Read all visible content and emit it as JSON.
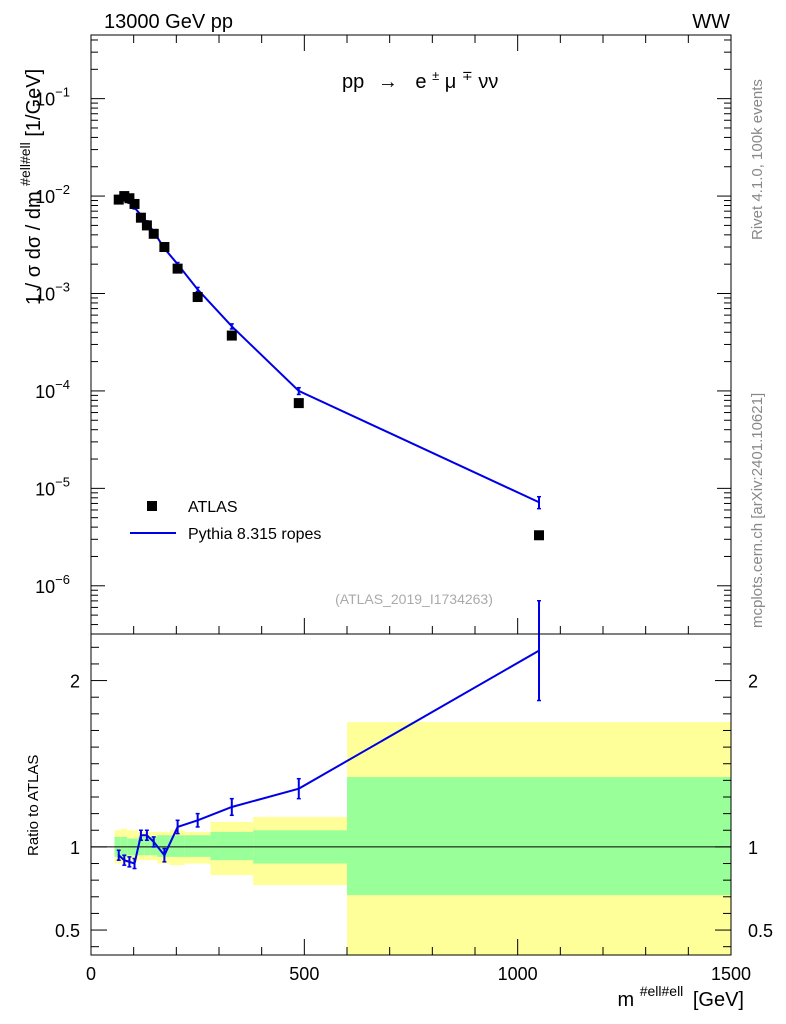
{
  "header": {
    "left_label": "13000 GeV pp",
    "right_label": "WW"
  },
  "side_labels": {
    "rivet": "Rivet 4.1.0,  100k events",
    "mcplots": "mcplots.cern.ch [arXiv:2401.10621]"
  },
  "chart_data": [
    {
      "type": "scatter",
      "title": "pp → e±μ∓νν",
      "title_parts": {
        "pp": "pp",
        "arrow": "→",
        "e": "e",
        "pm": "±",
        "mu": "μ",
        "mp": "∓",
        "nunu": "νν"
      },
      "ylabel": "1 / σ  dσ / dm",
      "ylabel_sup": "#ell#ell",
      "ylabel_unit": "[1/GeV]",
      "yscale": "log",
      "ylim": [
        3.2e-07,
        0.45
      ],
      "xlim": [
        0,
        1500
      ],
      "y_ticks": [
        {
          "v": 1e-06,
          "base": "10",
          "exp": "−6"
        },
        {
          "v": 1e-05,
          "base": "10",
          "exp": "−5"
        },
        {
          "v": 0.0001,
          "base": "10",
          "exp": "−4"
        },
        {
          "v": 0.001,
          "base": "10",
          "exp": "−3"
        },
        {
          "v": 0.01,
          "base": "10",
          "exp": "−2"
        },
        {
          "v": 0.1,
          "base": "10",
          "exp": "−1"
        }
      ],
      "watermark": "(ATLAS_2019_I1734263)",
      "legend": [
        "ATLAS",
        "Pythia 8.315 ropes"
      ],
      "series": [
        {
          "name": "ATLAS",
          "marker": "square",
          "color": "#000000",
          "x": [
            65,
            78,
            90,
            102,
            117,
            131,
            147,
            172,
            203,
            250,
            330,
            487,
            1050
          ],
          "y": [
            0.0092,
            0.01,
            0.0095,
            0.0083,
            0.006,
            0.005,
            0.0041,
            0.003,
            0.0018,
            0.00092,
            0.00037,
            7.5e-05,
            3.3e-06
          ]
        },
        {
          "name": "Pythia 8.315 ropes",
          "marker": "line",
          "color": "#0000e6",
          "x": [
            65,
            78,
            90,
            102,
            117,
            131,
            147,
            172,
            203,
            250,
            330,
            487,
            1050
          ],
          "y": [
            0.0087,
            0.0092,
            0.0087,
            0.0076,
            0.0064,
            0.0054,
            0.0043,
            0.0029,
            0.002,
            0.0011,
            0.00046,
            0.0001,
            7.2e-06
          ],
          "yerr_rel": [
            0.03,
            0.03,
            0.03,
            0.03,
            0.03,
            0.03,
            0.03,
            0.03,
            0.04,
            0.05,
            0.06,
            0.08,
            0.14
          ]
        }
      ]
    },
    {
      "type": "line",
      "ylabel": "Ratio to ATLAS",
      "xlabel": "m",
      "xlabel_sup": "#ell#ell",
      "xlabel_unit": "[GeV]",
      "ylim": [
        0.35,
        2.28
      ],
      "xlim": [
        0,
        1500
      ],
      "reference": 1,
      "x_ticks": [
        {
          "v": 0,
          "label": "0"
        },
        {
          "v": 500,
          "label": "500"
        },
        {
          "v": 1000,
          "label": "1000"
        },
        {
          "v": 1500,
          "label": "1500"
        }
      ],
      "y_ticks": [
        {
          "v": 0.5,
          "label": "0.5"
        },
        {
          "v": 1,
          "label": "1"
        },
        {
          "v": 2,
          "label": "2"
        }
      ],
      "bands": [
        {
          "x0": 55,
          "x1": 70,
          "stat": [
            0.94,
            1.06
          ],
          "total": [
            0.9,
            1.1
          ]
        },
        {
          "x0": 70,
          "x1": 85,
          "stat": [
            0.94,
            1.06
          ],
          "total": [
            0.9,
            1.11
          ]
        },
        {
          "x0": 85,
          "x1": 95,
          "stat": [
            0.95,
            1.05
          ],
          "total": [
            0.91,
            1.1
          ]
        },
        {
          "x0": 95,
          "x1": 110,
          "stat": [
            0.95,
            1.05
          ],
          "total": [
            0.91,
            1.1
          ]
        },
        {
          "x0": 110,
          "x1": 125,
          "stat": [
            0.95,
            1.06
          ],
          "total": [
            0.92,
            1.09
          ]
        },
        {
          "x0": 125,
          "x1": 140,
          "stat": [
            0.95,
            1.06
          ],
          "total": [
            0.92,
            1.09
          ]
        },
        {
          "x0": 140,
          "x1": 155,
          "stat": [
            0.95,
            1.06
          ],
          "total": [
            0.92,
            1.09
          ]
        },
        {
          "x0": 155,
          "x1": 185,
          "stat": [
            0.94,
            1.07
          ],
          "total": [
            0.9,
            1.09
          ]
        },
        {
          "x0": 185,
          "x1": 220,
          "stat": [
            0.94,
            1.07
          ],
          "total": [
            0.89,
            1.1
          ]
        },
        {
          "x0": 220,
          "x1": 280,
          "stat": [
            0.94,
            1.07
          ],
          "total": [
            0.9,
            1.09
          ]
        },
        {
          "x0": 280,
          "x1": 380,
          "stat": [
            0.92,
            1.09
          ],
          "total": [
            0.83,
            1.15
          ]
        },
        {
          "x0": 380,
          "x1": 600,
          "stat": [
            0.9,
            1.1
          ],
          "total": [
            0.77,
            1.18
          ]
        },
        {
          "x0": 600,
          "x1": 1500,
          "stat": [
            0.71,
            1.42
          ],
          "total": [
            0.35,
            1.75
          ]
        }
      ],
      "series": [
        {
          "name": "Pythia 8.315 ropes / ATLAS",
          "color": "#0000e6",
          "x": [
            65,
            78,
            90,
            102,
            117,
            131,
            147,
            172,
            203,
            250,
            330,
            487,
            1050
          ],
          "y": [
            0.95,
            0.92,
            0.91,
            0.9,
            1.07,
            1.07,
            1.03,
            0.95,
            1.12,
            1.16,
            1.24,
            1.35,
            2.18
          ],
          "yerr": [
            0.03,
            0.03,
            0.03,
            0.03,
            0.03,
            0.03,
            0.03,
            0.04,
            0.04,
            0.04,
            0.05,
            0.06,
            0.3
          ]
        }
      ]
    }
  ],
  "colors": {
    "stat_band": "#99ff99",
    "total_band": "#ffff99",
    "mc": "#0000e6",
    "data": "#000000",
    "muted": "#888888"
  }
}
